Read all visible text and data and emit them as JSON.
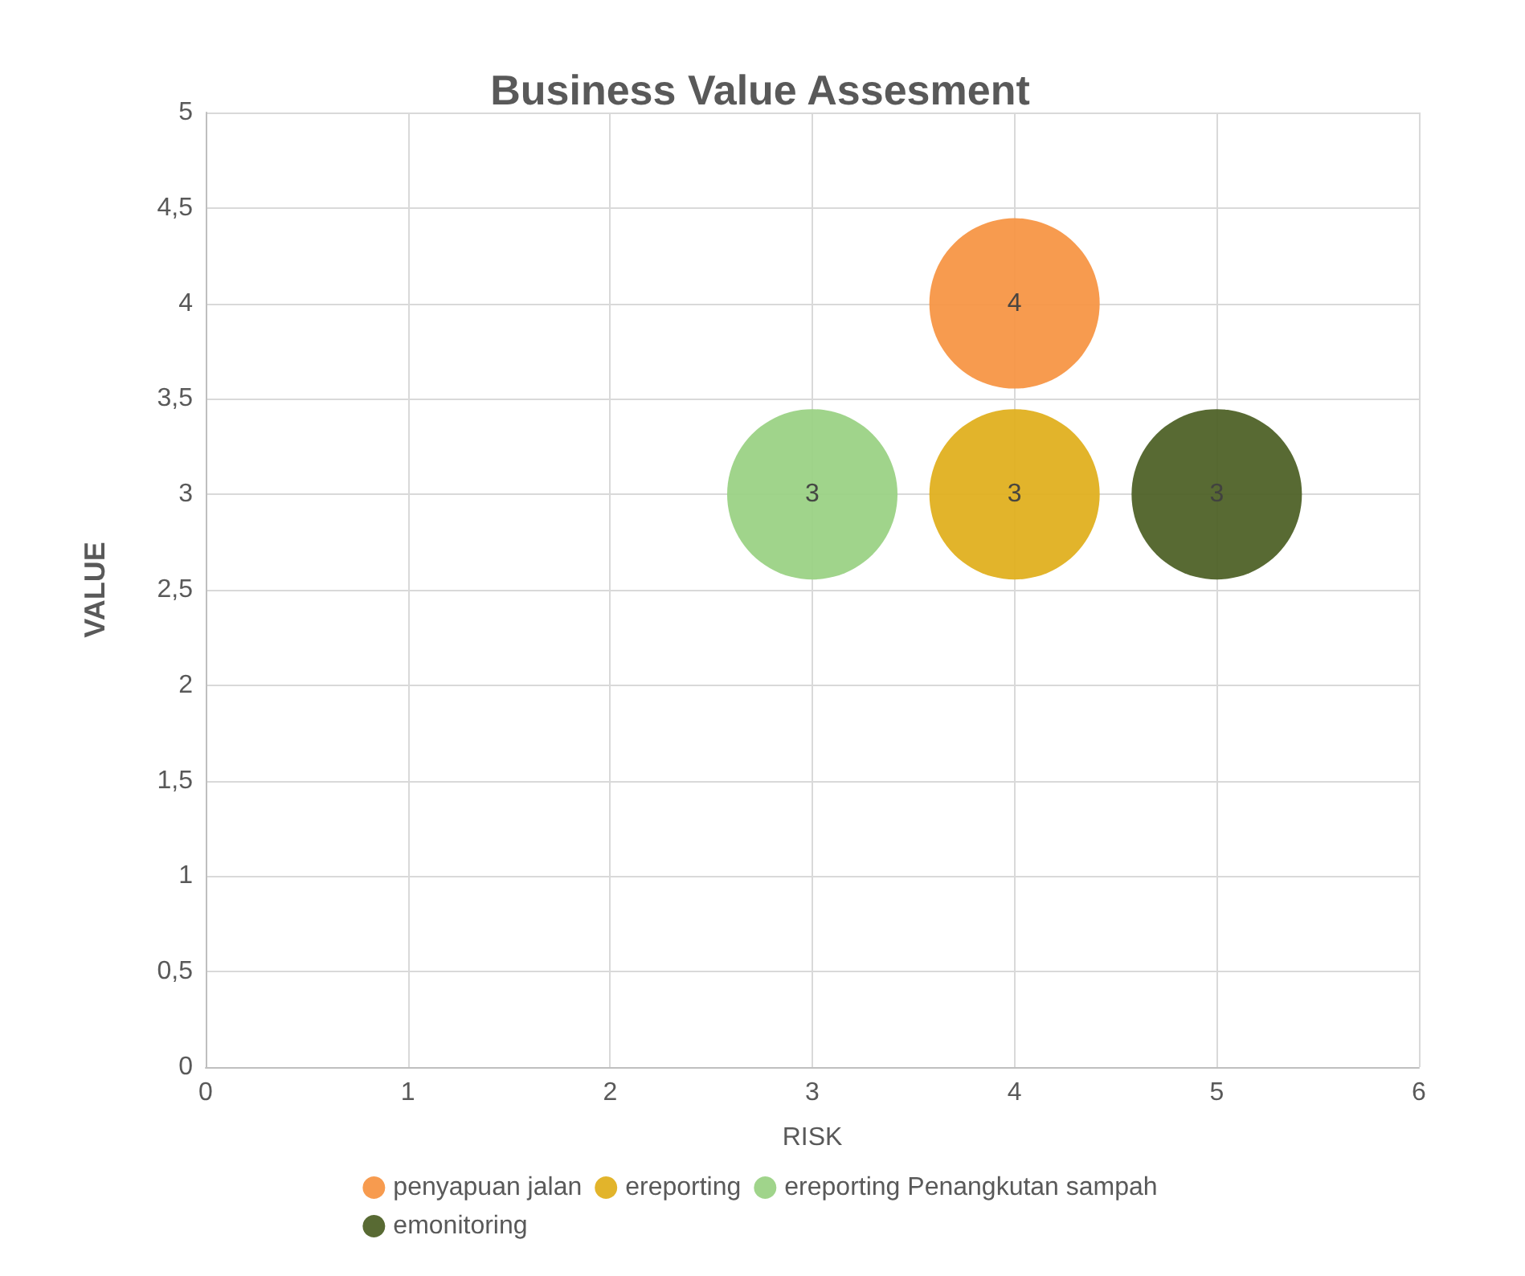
{
  "chart_data": {
    "type": "bubble",
    "title": "Business Value Assesment",
    "xlabel": "RISK",
    "ylabel": "VALUE",
    "series": [
      {
        "name": "penyapuan jalan",
        "color": "#f79646",
        "x": [
          4
        ],
        "values": [
          4
        ],
        "sizes": [
          1
        ]
      },
      {
        "name": "ereporting",
        "color": "#e0b020",
        "x": [
          4
        ],
        "values": [
          3
        ],
        "sizes": [
          1
        ]
      },
      {
        "name": "ereporting Penangkutan sampah",
        "color": "#9bd285",
        "x": [
          3
        ],
        "values": [
          3
        ],
        "sizes": [
          1
        ]
      },
      {
        "name": "emonitoring",
        "color": "#4f6228",
        "x": [
          5
        ],
        "values": [
          3
        ],
        "sizes": [
          1
        ]
      }
    ],
    "xlim": [
      0,
      6
    ],
    "xticks": [
      0,
      1,
      2,
      3,
      4,
      5,
      6
    ],
    "ylim": [
      0,
      5
    ],
    "yticks": [
      0,
      {
        "value": 0.5,
        "label": "0,5"
      },
      1,
      {
        "value": 1.5,
        "label": "1,5"
      },
      2,
      {
        "value": 2.5,
        "label": "2,5"
      },
      3,
      {
        "value": 3.5,
        "label": "3,5"
      },
      4,
      {
        "value": 4.5,
        "label": "4,5"
      },
      5
    ],
    "data_labels": true,
    "grid": true,
    "legend": "bottom"
  }
}
